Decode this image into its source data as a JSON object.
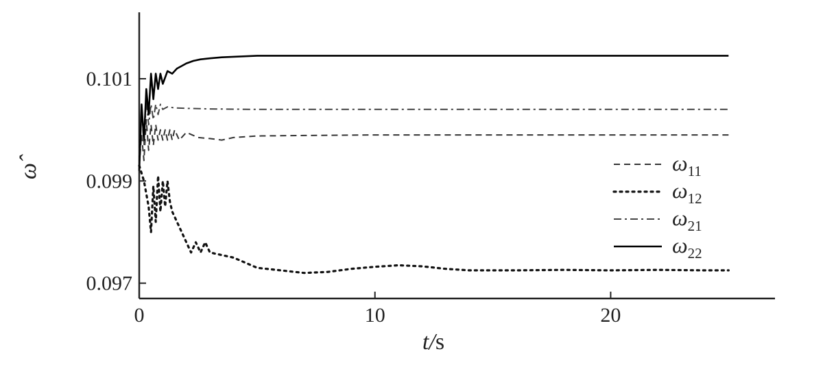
{
  "chart_data": {
    "type": "line",
    "xlabel_var": "t",
    "xlabel_unit": "s",
    "xlabel_sep": "/",
    "ylabel": "ω̂",
    "xlim": [
      0,
      27
    ],
    "ylim": [
      0.0967,
      0.1023
    ],
    "x_ticks": [
      0,
      10,
      20
    ],
    "x_tick_labels": [
      "0",
      "10",
      "20"
    ],
    "y_ticks": [
      0.097,
      0.099,
      0.101
    ],
    "y_tick_labels": [
      "0.097",
      "0.099",
      "0.101"
    ],
    "grid": false,
    "legend_position": "center-right",
    "series": [
      {
        "name": "ω11",
        "symbol": "ω",
        "sub": "11",
        "dash": "dashed",
        "color": "#333333",
        "x": [
          0,
          0.1,
          0.2,
          0.3,
          0.4,
          0.5,
          0.6,
          0.7,
          0.8,
          0.9,
          1.0,
          1.1,
          1.2,
          1.3,
          1.4,
          1.5,
          1.7,
          2.0,
          2.5,
          3.0,
          3.5,
          4.0,
          5.0,
          7.0,
          10,
          15,
          20,
          25
        ],
        "y": [
          0.0993,
          0.0999,
          0.0994,
          0.1002,
          0.0996,
          0.1001,
          0.0997,
          0.1001,
          0.0998,
          0.1,
          0.0998,
          0.1,
          0.0998,
          0.1,
          0.0998,
          0.1,
          0.0998,
          0.09995,
          0.09985,
          0.09983,
          0.0998,
          0.09985,
          0.09988,
          0.09989,
          0.0999,
          0.0999,
          0.0999,
          0.0999
        ]
      },
      {
        "name": "ω12",
        "symbol": "ω",
        "sub": "12",
        "dash": "dotted",
        "color": "#111111",
        "x": [
          0,
          0.2,
          0.4,
          0.5,
          0.6,
          0.7,
          0.8,
          0.9,
          1.0,
          1.1,
          1.2,
          1.3,
          1.4,
          1.6,
          1.8,
          2.0,
          2.2,
          2.4,
          2.6,
          2.8,
          3.0,
          3.5,
          4,
          5,
          6,
          7,
          8,
          9,
          10,
          11,
          12,
          13,
          14,
          16,
          18,
          20,
          22,
          24,
          25
        ],
        "y": [
          0.0993,
          0.099,
          0.0985,
          0.098,
          0.0989,
          0.0982,
          0.0991,
          0.0984,
          0.099,
          0.0985,
          0.099,
          0.0986,
          0.0984,
          0.0982,
          0.098,
          0.0978,
          0.0976,
          0.0978,
          0.0976,
          0.0978,
          0.0976,
          0.09755,
          0.0975,
          0.0973,
          0.09725,
          0.0972,
          0.09722,
          0.09728,
          0.09732,
          0.09735,
          0.09733,
          0.09728,
          0.09725,
          0.09725,
          0.09726,
          0.09725,
          0.09726,
          0.09725,
          0.09725
        ]
      },
      {
        "name": "ω21",
        "symbol": "ω",
        "sub": "21",
        "dash": "dashdot",
        "color": "#444444",
        "x": [
          0,
          0.1,
          0.2,
          0.3,
          0.4,
          0.5,
          0.6,
          0.7,
          0.8,
          0.9,
          1.0,
          1.2,
          1.5,
          2.0,
          3.0,
          5.0,
          10,
          15,
          20,
          25
        ],
        "y": [
          0.0995,
          0.1004,
          0.0997,
          0.1006,
          0.1001,
          0.1005,
          0.1002,
          0.1005,
          0.1003,
          0.1005,
          0.1004,
          0.10045,
          0.10043,
          0.10042,
          0.10041,
          0.1004,
          0.1004,
          0.1004,
          0.1004,
          0.1004
        ]
      },
      {
        "name": "ω22",
        "symbol": "ω",
        "sub": "22",
        "dash": "solid",
        "color": "#000000",
        "x": [
          0,
          0.1,
          0.2,
          0.3,
          0.4,
          0.5,
          0.6,
          0.7,
          0.8,
          0.9,
          1.0,
          1.2,
          1.4,
          1.6,
          1.8,
          2.0,
          2.3,
          2.6,
          3.0,
          3.5,
          4.0,
          5.0,
          6.0,
          8.0,
          10,
          15,
          20,
          25
        ],
        "y": [
          0.0992,
          0.1005,
          0.0998,
          0.1008,
          0.1003,
          0.1011,
          0.1006,
          0.1011,
          0.1008,
          0.1011,
          0.1009,
          0.10115,
          0.1011,
          0.1012,
          0.10125,
          0.1013,
          0.10135,
          0.10138,
          0.1014,
          0.10142,
          0.10143,
          0.10145,
          0.10145,
          0.10145,
          0.10145,
          0.10145,
          0.10145,
          0.10145
        ]
      }
    ]
  }
}
